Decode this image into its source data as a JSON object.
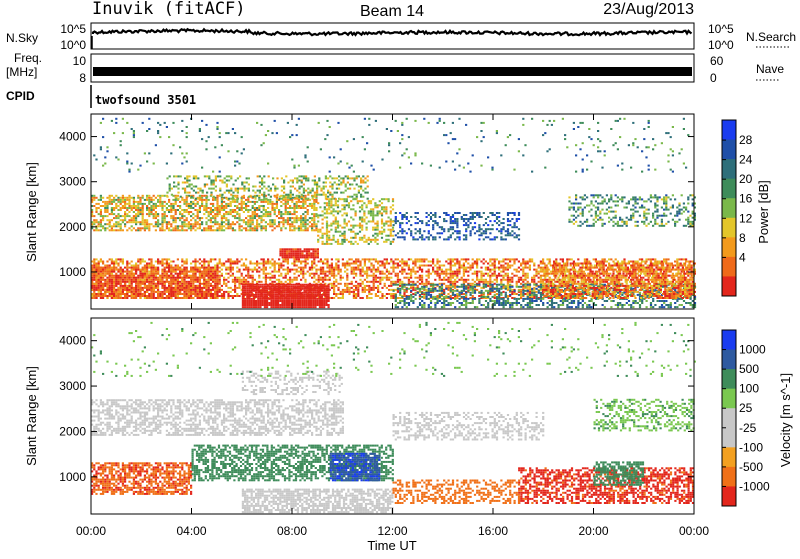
{
  "header": {
    "station": "Inuvik (fitACF)",
    "beam": "Beam 14",
    "date": "23/Aug/2013"
  },
  "strips": {
    "nsky_label": "N.Sky",
    "nsky_ticks": [
      "10^5",
      "10^0"
    ],
    "nsearch_label": "N.Search",
    "nsearch_ticks": [
      "10^5",
      "10^0"
    ],
    "freq_label_1": "Freq.",
    "freq_label_2": "[MHz]",
    "freq_ticks": [
      "10",
      "8"
    ],
    "nave_label": "Nave",
    "nave_ticks": [
      "60",
      "0"
    ],
    "cpid_label": "CPID",
    "cpid_value": "twofsound 3501"
  },
  "colors": {
    "power": [
      "#1a3cf0",
      "#1f4fa8",
      "#2e6f7a",
      "#3e8c5a",
      "#7ab84a",
      "#e3c62a",
      "#f39a1c",
      "#ef6a1a",
      "#e3261c"
    ],
    "velocity": [
      "#1a3cf0",
      "#2e5aa0",
      "#3e8c5a",
      "#7ac850",
      "#c8c8c8",
      "#c8c8c8",
      "#f3a020",
      "#f07018",
      "#e3261c"
    ]
  },
  "chart_data": [
    {
      "type": "heatmap",
      "title": "Power",
      "ylabel": "Slant Range [km]",
      "xlabel": "Time UT",
      "xlim": [
        "00:00",
        "24:00"
      ],
      "ylim": [
        180,
        4500
      ],
      "x_ticks": [
        "00:00",
        "04:00",
        "08:00",
        "12:00",
        "16:00",
        "20:00",
        "00:00"
      ],
      "y_ticks": [
        1000,
        2000,
        3000,
        4000
      ],
      "colorbar_label": "Power [dB]",
      "colorbar_ticks": [
        "4",
        "8",
        "12",
        "16",
        "20",
        "24",
        "28"
      ],
      "value_range": [
        0,
        30
      ]
    },
    {
      "type": "heatmap",
      "title": "Velocity",
      "ylabel": "Slant Range [km]",
      "xlabel": "Time UT",
      "xlim": [
        "00:00",
        "24:00"
      ],
      "ylim": [
        180,
        4500
      ],
      "x_ticks": [
        "00:00",
        "04:00",
        "08:00",
        "12:00",
        "16:00",
        "20:00",
        "00:00"
      ],
      "y_ticks": [
        1000,
        2000,
        3000,
        4000
      ],
      "colorbar_label": "Velocity [m s^-1]",
      "colorbar_ticks": [
        "1000",
        "500",
        "100",
        "25",
        "-25",
        "-100",
        "-500",
        "-1000"
      ],
      "value_range": [
        -1000,
        1000
      ]
    }
  ]
}
